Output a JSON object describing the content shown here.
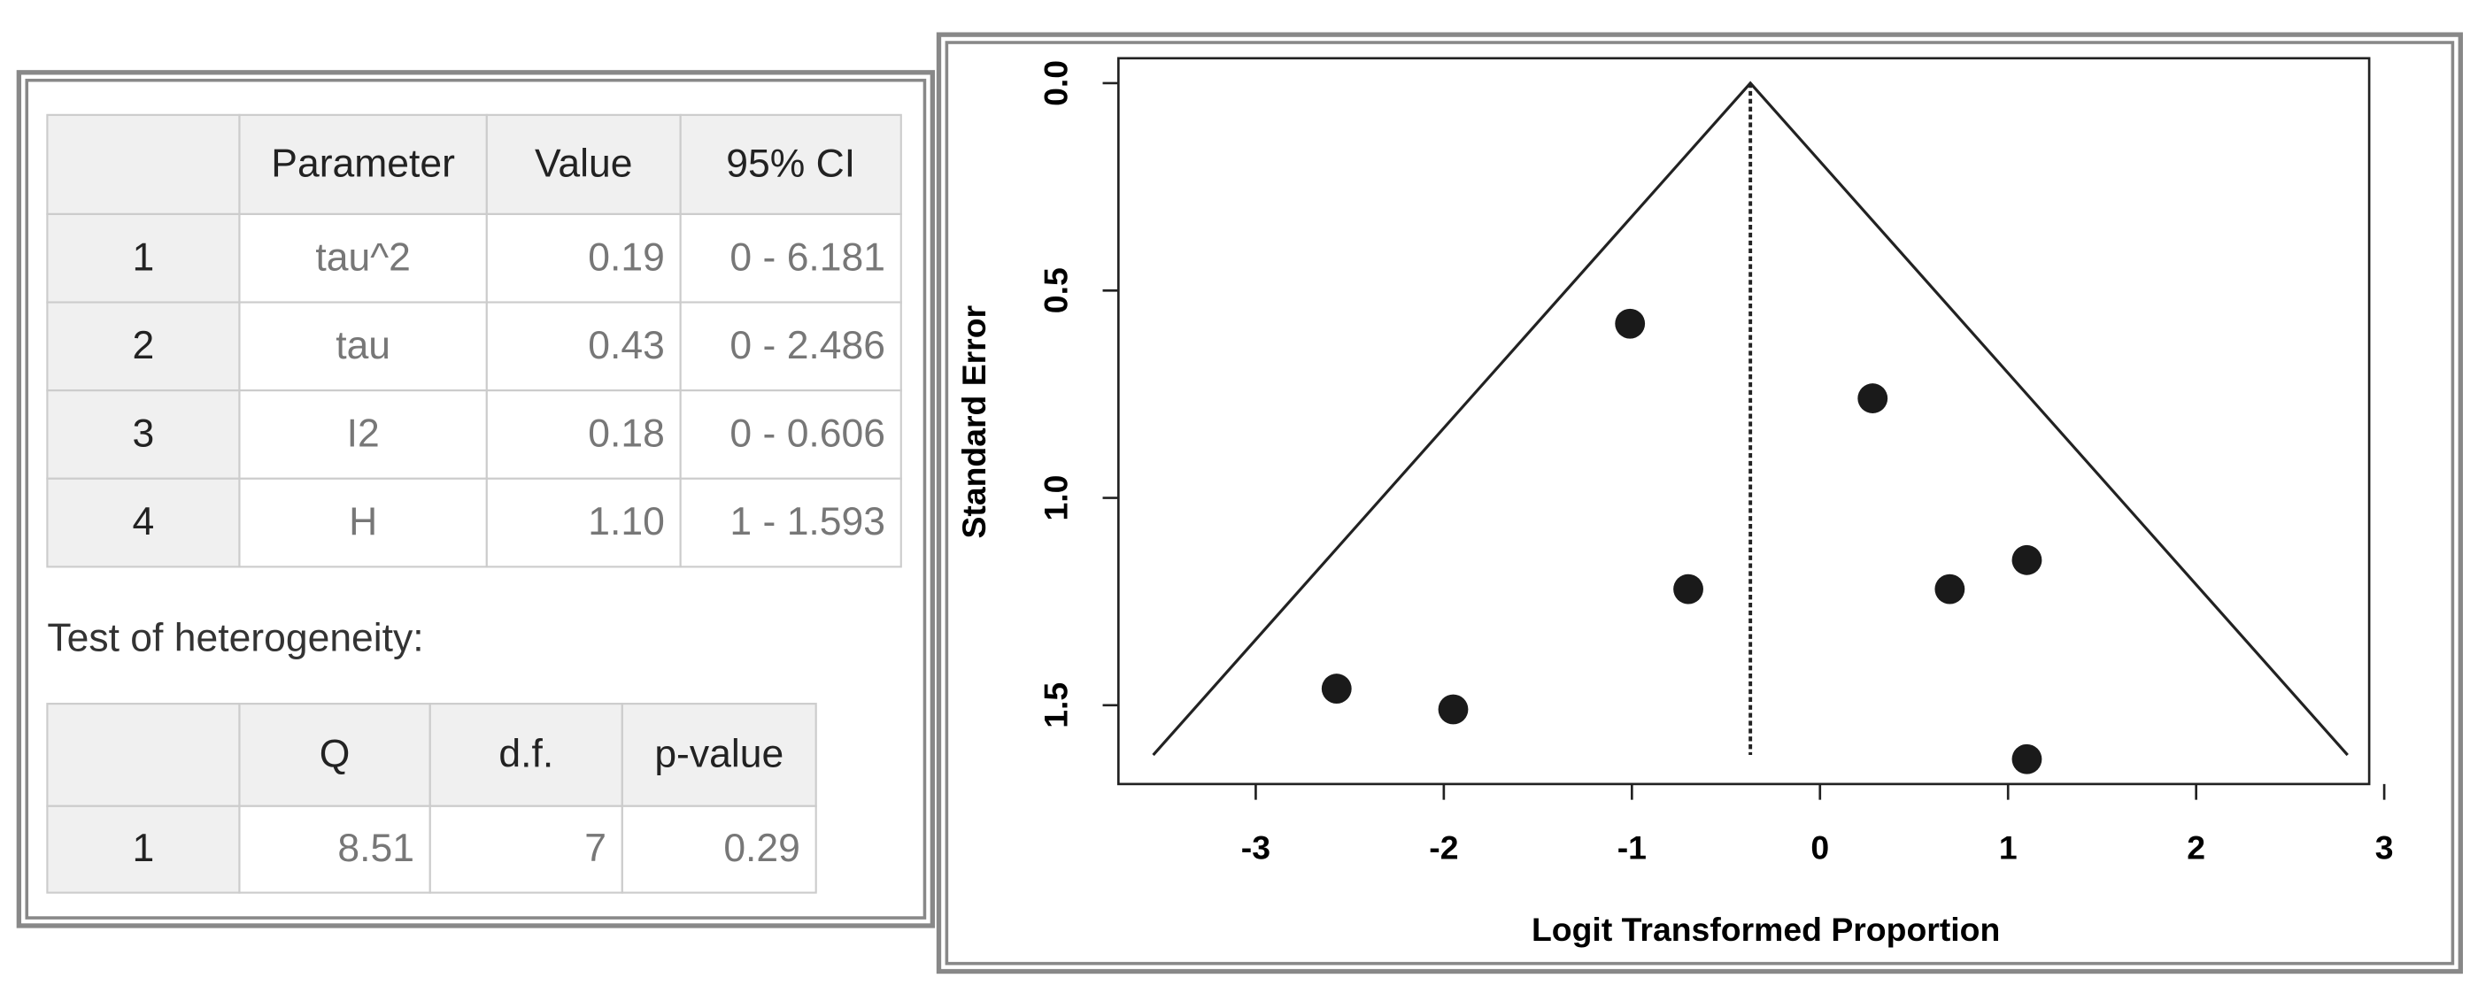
{
  "parameters_table": {
    "header": [
      "Parameter",
      "Value",
      "95% CI"
    ],
    "rows": [
      [
        "1",
        "tau^2",
        "0.19",
        "0 - 6.181"
      ],
      [
        "2",
        "tau",
        "0.43",
        "0 - 2.486"
      ],
      [
        "3",
        "I2",
        "0.18",
        "0 - 0.606"
      ],
      [
        "4",
        "H",
        "1.10",
        "1 - 1.593"
      ]
    ]
  },
  "heterogeneity_title": "Test of heterogeneity:",
  "heterogeneity_table": {
    "header": [
      "Q",
      "d.f.",
      "p-value"
    ],
    "rows": [
      [
        "1",
        "8.51",
        "7",
        "0.29"
      ]
    ]
  },
  "chart_data": {
    "type": "funnel",
    "x_label": "Logit Transformed Proportion",
    "y_label": "Standard Error",
    "x": [
      -1.01,
      0.28,
      -0.7,
      0.69,
      1.1,
      -2.57,
      -1.95,
      1.1
    ],
    "y": [
      0.58,
      0.76,
      1.22,
      1.22,
      1.15,
      1.46,
      1.51,
      1.63
    ],
    "color": "#1a1a1a",
    "funnel": {
      "center": -0.37,
      "se_max": 1.62,
      "z": 1.96
    },
    "xlim": [
      -3.73,
      2.92
    ],
    "xticks": [
      -3,
      -2,
      -1,
      0,
      1,
      2,
      3
    ],
    "ylim": [
      -0.06,
      1.69
    ],
    "y_reversed": true,
    "yticks": [
      {
        "value": 0,
        "label": "0.0"
      },
      0.5,
      {
        "value": 1,
        "label": "1.0"
      },
      1.5
    ]
  }
}
